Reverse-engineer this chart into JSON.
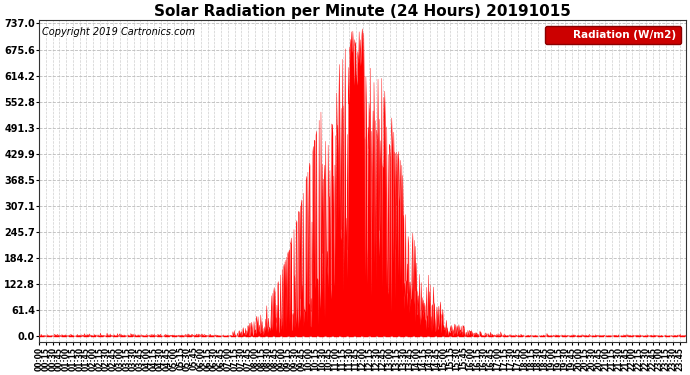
{
  "title": "Solar Radiation per Minute (24 Hours) 20191015",
  "copyright": "Copyright 2019 Cartronics.com",
  "legend_label": "Radiation (W/m2)",
  "yticks": [
    0.0,
    61.4,
    122.8,
    184.2,
    245.7,
    307.1,
    368.5,
    429.9,
    491.3,
    552.8,
    614.2,
    675.6,
    737.0
  ],
  "ymax": 737.0,
  "fill_color": "#ff0000",
  "line_color": "#ff0000",
  "bg_color": "#ffffff",
  "grid_color": "#bbbbbb",
  "dashed_line_color": "#ff0000",
  "legend_bg": "#cc0000",
  "legend_text_color": "#ffffff",
  "title_fontsize": 11,
  "copyright_fontsize": 7,
  "sunrise_min": 430,
  "sunset_min": 1035,
  "peak_min": 700,
  "peak_val": 737.0,
  "sigma_rise": 90,
  "sigma_set": 100
}
